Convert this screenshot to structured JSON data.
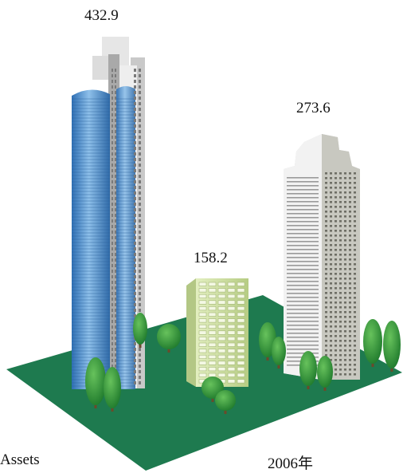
{
  "chart_data": {
    "type": "bar",
    "style": "pictorial buildings",
    "categories": [
      "",
      "",
      ""
    ],
    "values": [
      432.9,
      158.2,
      273.6
    ],
    "value_labels": [
      "432.9",
      "158.2",
      "273.6"
    ],
    "xlabel": "2006年",
    "ylabel": "Assets",
    "colors": {
      "ground": "#1e7a4f",
      "tower_blue": "#4a8fcf",
      "tower_grey": "#d4d4d4",
      "office_green": "#cfe0a4",
      "tower_white": "#eeeeee",
      "tree": "#2f8f3a"
    }
  }
}
